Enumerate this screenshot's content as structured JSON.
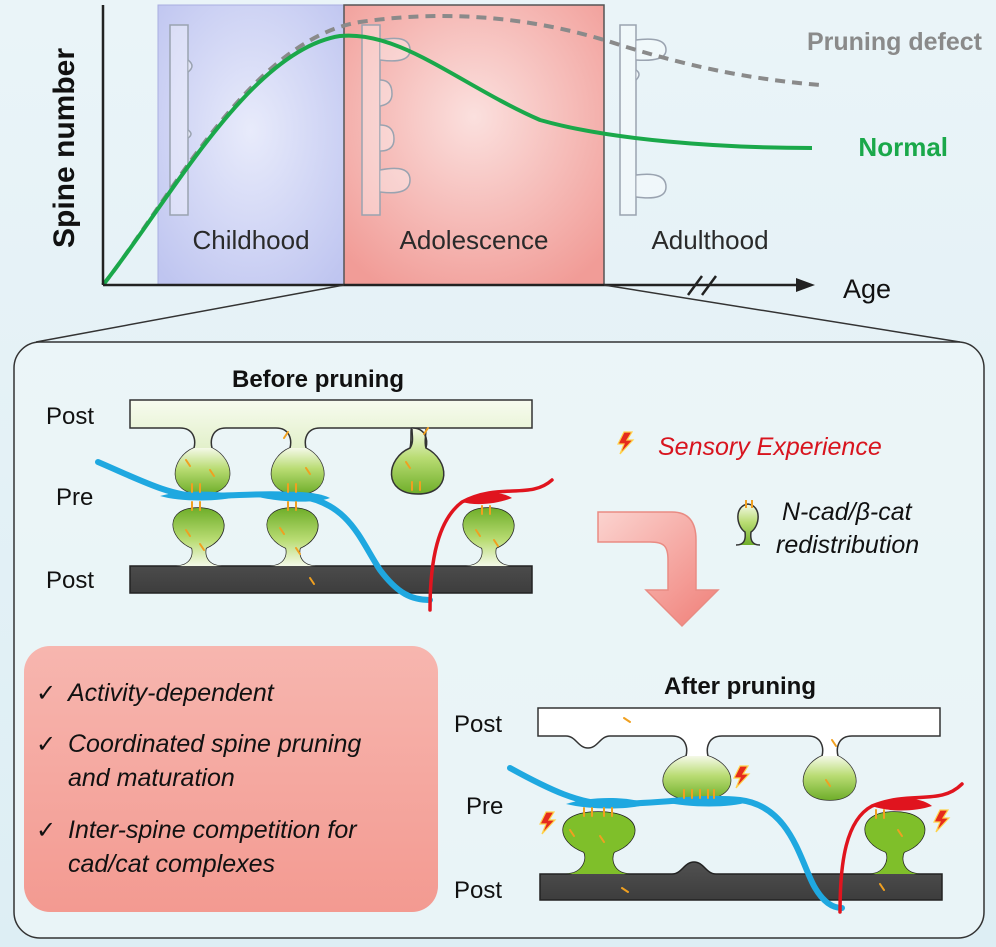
{
  "colors": {
    "normal": "#1aa84a",
    "defect": "#8a8a8a",
    "childhood_bg": "#c9cdf2",
    "adolescence_bg": "#f4aaa6",
    "pre_axon_blue": "#1fa8e0",
    "pre_axon_red": "#e0141e",
    "spine_green": "#8fc43c",
    "post_dark": "#555555",
    "checklist_bg": "#f6aaa2",
    "sensory_text": "#d8141e",
    "cadherin_orange": "#f0a020"
  },
  "top": {
    "y_axis_label": "Spine number",
    "x_axis_label": "Age",
    "stages": [
      "Childhood",
      "Adolescence",
      "Adulthood"
    ],
    "curve_labels": {
      "defect": "Pruning defect",
      "normal": "Normal"
    }
  },
  "panel": {
    "before": {
      "title": "Before pruning",
      "post_top": "Post",
      "pre": "Pre",
      "post_bottom": "Post"
    },
    "after": {
      "title": "After pruning",
      "post_top": "Post",
      "pre": "Pre",
      "post_bottom": "Post"
    },
    "sensory": "Sensory Experience",
    "redistribution_line1": "N-cad/β-cat",
    "redistribution_line2": "redistribution",
    "checklist": {
      "check": "✓",
      "items": [
        [
          "Activity-dependent"
        ],
        [
          "Coordinated spine pruning",
          "and maturation"
        ],
        [
          "Inter-spine competition for",
          "cad/cat complexes"
        ]
      ]
    }
  }
}
